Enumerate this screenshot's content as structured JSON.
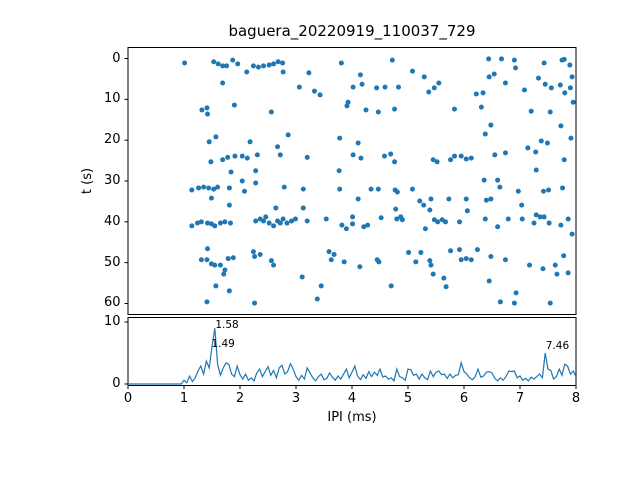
{
  "figure": {
    "title": "baguera_20220919_110037_729"
  },
  "colors": {
    "accent": "#1f77b4",
    "text": "#000000",
    "spine": "#000000",
    "background": "#ffffff"
  },
  "chart_data": [
    {
      "type": "scatter",
      "title": "baguera_20220919_110037_729",
      "xlabel": "",
      "ylabel": "t (s)",
      "xlim": [
        0,
        8
      ],
      "ylim": [
        62.7,
        -2.7
      ],
      "y_inverted": true,
      "yticks": [
        0,
        10,
        20,
        30,
        40,
        50,
        60
      ],
      "xticks_shown": false,
      "grid": false,
      "legend": "none",
      "marker_color": "#1f77b4",
      "points": [
        [
          1.01,
          1.1
        ],
        [
          1.53,
          0.8
        ],
        [
          1.61,
          1.3
        ],
        [
          1.69,
          1.8
        ],
        [
          1.76,
          1.8
        ],
        [
          1.87,
          0.4
        ],
        [
          1.96,
          1.3
        ],
        [
          2.12,
          3.3
        ],
        [
          2.24,
          1.8
        ],
        [
          2.33,
          2.1
        ],
        [
          2.42,
          1.8
        ],
        [
          2.52,
          1.6
        ],
        [
          2.6,
          1.3
        ],
        [
          2.68,
          0.8
        ],
        [
          2.76,
          1.1
        ],
        [
          2.77,
          3.3
        ],
        [
          3.23,
          3.5
        ],
        [
          3.81,
          1.1
        ],
        [
          1.69,
          6
        ],
        [
          3.06,
          7
        ],
        [
          3.33,
          8
        ],
        [
          3.43,
          8.9
        ],
        [
          3.93,
          10.7
        ],
        [
          1.9,
          11.4
        ],
        [
          1.32,
          12.6
        ],
        [
          1.41,
          12.1
        ],
        [
          1.42,
          13.6
        ],
        [
          2.56,
          13.1
        ],
        [
          3.91,
          11.6
        ],
        [
          1.45,
          20.4
        ],
        [
          1.57,
          19.2
        ],
        [
          2.18,
          20.4
        ],
        [
          2.86,
          18.7
        ],
        [
          2.67,
          21.6
        ],
        [
          2.72,
          23.6
        ],
        [
          3.78,
          19.5
        ],
        [
          1.48,
          25.3
        ],
        [
          1.69,
          24.8
        ],
        [
          1.78,
          24.2
        ],
        [
          1.91,
          23.9
        ],
        [
          2.04,
          23.9
        ],
        [
          2.13,
          24.4
        ],
        [
          2.31,
          23.6
        ],
        [
          1.84,
          27.8
        ],
        [
          2.28,
          27.5
        ],
        [
          3.2,
          24.2
        ],
        [
          3.77,
          27.5
        ],
        [
          4.15,
          4
        ],
        [
          4.18,
          6.3
        ],
        [
          4.02,
          7
        ],
        [
          4.44,
          7.2
        ],
        [
          4.59,
          7
        ],
        [
          4.72,
          0.4
        ],
        [
          4.83,
          7
        ],
        [
          5.08,
          3.1
        ],
        [
          5.29,
          4.5
        ],
        [
          5.37,
          8.2
        ],
        [
          5.47,
          7.2
        ],
        [
          5.55,
          6
        ],
        [
          4.25,
          12.6
        ],
        [
          4.47,
          13.1
        ],
        [
          4.76,
          12.4
        ],
        [
          5.83,
          12.4
        ],
        [
          6.22,
          8.7
        ],
        [
          6.34,
          8.4
        ],
        [
          6.31,
          11.9
        ],
        [
          6.44,
          0.1
        ],
        [
          6.45,
          4.5
        ],
        [
          6.54,
          3.8
        ],
        [
          6.67,
          0.1
        ],
        [
          6.74,
          6
        ],
        [
          6.9,
          0.4
        ],
        [
          6.92,
          2.3
        ],
        [
          7.08,
          7.7
        ],
        [
          7.2,
          12.9
        ],
        [
          7.33,
          4.8
        ],
        [
          7.43,
          1.1
        ],
        [
          7.45,
          6.3
        ],
        [
          7.56,
          7.2
        ],
        [
          7.54,
          13.1
        ],
        [
          7.72,
          6.5
        ],
        [
          7.75,
          0.4
        ],
        [
          7.9,
          7.2
        ],
        [
          7.93,
          4.5
        ],
        [
          7.79,
          0.2
        ],
        [
          7.95,
          10.7
        ],
        [
          7.91,
          19.5
        ],
        [
          4.11,
          20.7
        ],
        [
          4.02,
          23.6
        ],
        [
          4.16,
          24.4
        ],
        [
          4.58,
          23.9
        ],
        [
          4.69,
          23.4
        ],
        [
          4.76,
          25.3
        ],
        [
          5.45,
          24.8
        ],
        [
          5.52,
          25.3
        ],
        [
          5.76,
          24.8
        ],
        [
          5.83,
          23.9
        ],
        [
          5.95,
          23.9
        ],
        [
          6.04,
          24.6
        ],
        [
          6.13,
          24.4
        ],
        [
          6.48,
          16.3
        ],
        [
          6.38,
          18.5
        ],
        [
          6.55,
          23.6
        ],
        [
          6.74,
          23.1
        ],
        [
          7.14,
          21.9
        ],
        [
          7.28,
          22.9
        ],
        [
          7.38,
          20.2
        ],
        [
          7.49,
          20.7
        ],
        [
          7.73,
          16.5
        ],
        [
          7.79,
          24.8
        ],
        [
          7.29,
          27.3
        ],
        [
          7.8,
          8.4
        ],
        [
          7.89,
          1.6
        ],
        [
          1.14,
          32.2
        ],
        [
          1.26,
          31.7
        ],
        [
          1.35,
          31.5
        ],
        [
          1.44,
          31.7
        ],
        [
          1.53,
          32
        ],
        [
          1.6,
          31.5
        ],
        [
          1.81,
          31.7
        ],
        [
          1.49,
          34.2
        ],
        [
          2.04,
          30
        ],
        [
          2.08,
          32.5
        ],
        [
          2.28,
          30.5
        ],
        [
          1.81,
          35.9
        ],
        [
          2.79,
          31.5
        ],
        [
          3.13,
          32
        ],
        [
          3.78,
          32
        ],
        [
          2.64,
          36.6
        ],
        [
          3.13,
          36.6
        ],
        [
          1.14,
          41
        ],
        [
          1.24,
          40.3
        ],
        [
          1.31,
          40
        ],
        [
          1.42,
          40.3
        ],
        [
          1.49,
          40.5
        ],
        [
          1.55,
          41
        ],
        [
          1.65,
          40.3
        ],
        [
          1.73,
          40
        ],
        [
          1.83,
          40.3
        ],
        [
          2.28,
          39.8
        ],
        [
          2.36,
          39.3
        ],
        [
          2.42,
          39.8
        ],
        [
          2.46,
          38.8
        ],
        [
          2.52,
          40.3
        ],
        [
          2.6,
          41
        ],
        [
          2.67,
          39.8
        ],
        [
          2.72,
          40.3
        ],
        [
          2.77,
          39.3
        ],
        [
          2.84,
          40.3
        ],
        [
          2.92,
          39.8
        ],
        [
          2.99,
          39.3
        ],
        [
          3.2,
          39.8
        ],
        [
          3.54,
          39.3
        ],
        [
          3.82,
          40.8
        ],
        [
          3.9,
          41.7
        ],
        [
          1.42,
          46.6
        ],
        [
          1.31,
          49.3
        ],
        [
          1.41,
          49.3
        ],
        [
          1.49,
          50.3
        ],
        [
          1.55,
          50.6
        ],
        [
          1.65,
          50.6
        ],
        [
          1.73,
          51.8
        ],
        [
          1.71,
          52.8
        ],
        [
          1.79,
          49
        ],
        [
          1.88,
          48.8
        ],
        [
          2.24,
          47.3
        ],
        [
          2.26,
          48.5
        ],
        [
          2.36,
          48
        ],
        [
          2.56,
          49.5
        ],
        [
          2.6,
          50.6
        ],
        [
          3.59,
          47.3
        ],
        [
          3.68,
          48
        ],
        [
          3.63,
          49.3
        ],
        [
          3.86,
          49.8
        ],
        [
          1.57,
          55.7
        ],
        [
          1.81,
          56.9
        ],
        [
          3.11,
          53.5
        ],
        [
          3.45,
          55.7
        ],
        [
          3.38,
          58.9
        ],
        [
          1.41,
          59.6
        ],
        [
          2.26,
          59.9
        ],
        [
          6.36,
          29.8
        ],
        [
          6.6,
          29.8
        ],
        [
          4.34,
          32
        ],
        [
          4.47,
          32
        ],
        [
          4.11,
          34.4
        ],
        [
          4.77,
          32.2
        ],
        [
          4.81,
          32.7
        ],
        [
          5.08,
          32
        ],
        [
          4.78,
          36.9
        ],
        [
          5.21,
          34.9
        ],
        [
          5.41,
          34.4
        ],
        [
          5.28,
          35.9
        ],
        [
          5.39,
          37.1
        ],
        [
          5.73,
          34.4
        ],
        [
          6.04,
          34.4
        ],
        [
          6.06,
          37.3
        ],
        [
          6.4,
          34.7
        ],
        [
          6.48,
          34.4
        ],
        [
          6.64,
          31.5
        ],
        [
          6.97,
          32.5
        ],
        [
          7.03,
          35.9
        ],
        [
          7.42,
          32.5
        ],
        [
          7.51,
          32.2
        ],
        [
          7.76,
          31.7
        ],
        [
          4.01,
          38.8
        ],
        [
          4.01,
          40.5
        ],
        [
          4.21,
          41.2
        ],
        [
          4.28,
          40.8
        ],
        [
          4.52,
          39
        ],
        [
          4.8,
          39.3
        ],
        [
          4.87,
          38.8
        ],
        [
          4.9,
          39.5
        ],
        [
          5.31,
          41.7
        ],
        [
          5.47,
          39.5
        ],
        [
          5.53,
          40
        ],
        [
          5.61,
          39.5
        ],
        [
          5.67,
          40
        ],
        [
          5.92,
          40
        ],
        [
          6.38,
          39.3
        ],
        [
          6.6,
          41.2
        ],
        [
          6.79,
          39.3
        ],
        [
          7.04,
          39.3
        ],
        [
          7.25,
          40.3
        ],
        [
          7.29,
          38.3
        ],
        [
          7.36,
          38.8
        ],
        [
          7.43,
          38.8
        ],
        [
          7.52,
          40.3
        ],
        [
          7.73,
          40.8
        ],
        [
          7.86,
          39.3
        ],
        [
          7.93,
          43
        ],
        [
          4.14,
          51
        ],
        [
          4.45,
          49.3
        ],
        [
          4.48,
          49.8
        ],
        [
          4.7,
          55.7
        ],
        [
          5.01,
          47.5
        ],
        [
          5.14,
          49.8
        ],
        [
          5.23,
          47.5
        ],
        [
          5.39,
          49.5
        ],
        [
          5.41,
          50.6
        ],
        [
          5.45,
          52.8
        ],
        [
          5.64,
          53.8
        ],
        [
          5.68,
          55.9
        ],
        [
          5.76,
          47.1
        ],
        [
          5.92,
          46.8
        ],
        [
          5.95,
          49.3
        ],
        [
          6.04,
          49
        ],
        [
          6.13,
          49.3
        ],
        [
          6.24,
          46.8
        ],
        [
          6.48,
          48.5
        ],
        [
          6.45,
          54.5
        ],
        [
          6.74,
          49.3
        ],
        [
          6.65,
          59.6
        ],
        [
          6.9,
          59.9
        ],
        [
          6.93,
          57.4
        ],
        [
          7.17,
          50.6
        ],
        [
          7.41,
          51.5
        ],
        [
          7.54,
          59.9
        ],
        [
          7.63,
          50.6
        ],
        [
          7.66,
          52.8
        ],
        [
          7.78,
          48.3
        ],
        [
          7.86,
          52.5
        ]
      ]
    },
    {
      "type": "line",
      "xlabel": "IPI (ms)",
      "ylabel": "",
      "xlim": [
        0,
        8
      ],
      "ylim": [
        -0.24,
        10.73
      ],
      "yticks": [
        0,
        10
      ],
      "xticks": [
        0,
        1,
        2,
        3,
        4,
        5,
        6,
        7,
        8
      ],
      "grid": false,
      "legend": "none",
      "line_color": "#1f77b4",
      "x_start": 0,
      "x_step": 0.05,
      "values": [
        0,
        0,
        0,
        0,
        0,
        0,
        0,
        0,
        0,
        0,
        0,
        0,
        0,
        0,
        0,
        0,
        0,
        0,
        0,
        0,
        0.6,
        0.2,
        1.3,
        0.4,
        1.0,
        2.1,
        2.9,
        1.6,
        3.7,
        2.6,
        6.0,
        9.0,
        3.2,
        1.4,
        2.6,
        3.4,
        3.2,
        1.6,
        1.2,
        2.9,
        1.5,
        0.8,
        1.6,
        0.6,
        1.0,
        0.5,
        1.8,
        2.4,
        1.2,
        2.0,
        2.8,
        1.4,
        2.2,
        1.0,
        2.6,
        3.0,
        1.6,
        2.0,
        3.3,
        2.4,
        1.2,
        0.6,
        1.4,
        0.8,
        2.6,
        1.8,
        1.0,
        0.5,
        1.2,
        1.6,
        0.7,
        0.9,
        1.8,
        1.1,
        0.6,
        1.3,
        0.8,
        1.6,
        2.4,
        1.0,
        1.9,
        2.9,
        1.3,
        0.7,
        1.5,
        0.9,
        2.0,
        1.2,
        1.9,
        1.4,
        2.4,
        1.1,
        1.3,
        0.8,
        1.0,
        0.5,
        2.4,
        1.2,
        1.0,
        0.6,
        2.4,
        2.3,
        1.4,
        1.6,
        0.8,
        1.6,
        1.0,
        0.7,
        2.1,
        1.2,
        1.9,
        2.1,
        1.5,
        1.6,
        0.9,
        1.6,
        1.0,
        1.4,
        1.5,
        3.4,
        2.0,
        1.6,
        1.0,
        0.7,
        1.2,
        2.4,
        1.1,
        1.3,
        1.9,
        2.0,
        1.8,
        0.9,
        0.5,
        1.0,
        0.6,
        1.2,
        2.1,
        2.0,
        2.1,
        1.0,
        1.3,
        0.6,
        0.9,
        0.5,
        1.1,
        0.8,
        1.2,
        1.6,
        1.0,
        5.0,
        2.4,
        2.2,
        0.8,
        1.2,
        2.4,
        1.4,
        3.2,
        2.9,
        1.6,
        2.1,
        1.2
      ],
      "annotations": [
        {
          "text": "1.58",
          "x": 1.56,
          "y_top": 10.4
        },
        {
          "text": "1.49",
          "x": 1.49,
          "y_top": 7.2
        },
        {
          "text": "7.46",
          "x": 7.46,
          "y_top": 6.9
        }
      ]
    }
  ]
}
